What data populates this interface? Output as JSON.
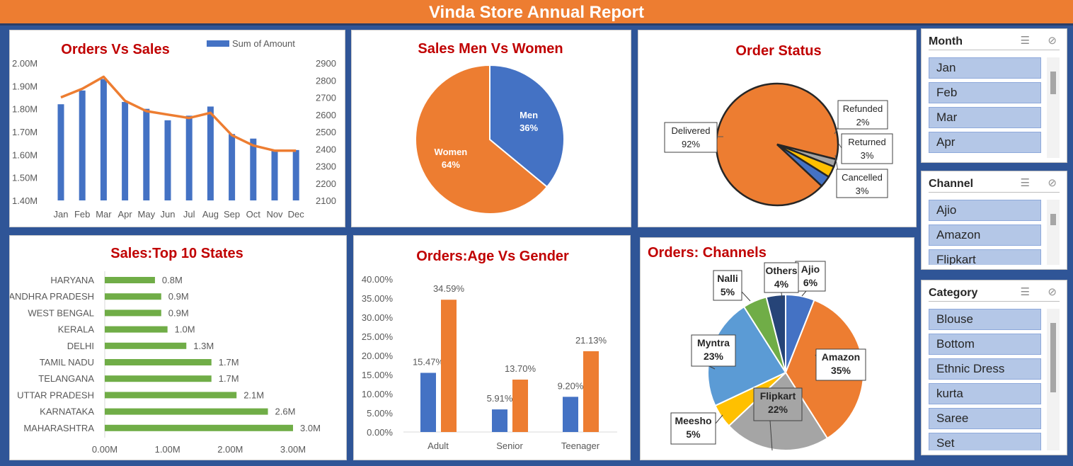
{
  "banner": {
    "title": "Vinda Store Annual Report"
  },
  "colors": {
    "blue": "#4472c4",
    "orange": "#ed7d31",
    "gray": "#a5a5a5",
    "yellow": "#ffc000",
    "lightblue": "#5b9bd5",
    "green": "#70ad47",
    "navy": "#264478",
    "title_red": "#c00000",
    "frame": "#2f5597"
  },
  "charts": [
    {
      "id": "orders_vs_sales",
      "type": "bar",
      "title": "Orders Vs Sales",
      "legend": [
        "Sum of Amount"
      ],
      "categories": [
        "Jan",
        "Feb",
        "Mar",
        "Apr",
        "May",
        "Jun",
        "Jul",
        "Aug",
        "Sep",
        "Oct",
        "Nov",
        "Dec"
      ],
      "series": [
        {
          "name": "Sum of Amount",
          "type": "bar",
          "axis": "left",
          "values": [
            1.82,
            1.88,
            1.93,
            1.83,
            1.8,
            1.75,
            1.77,
            1.81,
            1.69,
            1.67,
            1.62,
            1.62
          ]
        },
        {
          "type": "line",
          "axis": "right",
          "values": [
            2700,
            2750,
            2820,
            2680,
            2620,
            2600,
            2580,
            2610,
            2480,
            2420,
            2390,
            2390
          ]
        }
      ],
      "left_ticks": [
        "1.40M",
        "1.50M",
        "1.60M",
        "1.70M",
        "1.80M",
        "1.90M",
        "2.00M"
      ],
      "right_ticks": [
        "2100",
        "2200",
        "2300",
        "2400",
        "2500",
        "2600",
        "2700",
        "2800",
        "2900"
      ],
      "ylim": [
        1.4,
        2.0
      ],
      "y2lim": [
        2100,
        2900
      ]
    },
    {
      "id": "sales_gender",
      "type": "pie",
      "title": "Sales Men Vs Women",
      "slices": [
        {
          "label": "Men",
          "value": 36,
          "pct": "36%",
          "color": "#4472c4"
        },
        {
          "label": "Women",
          "value": 64,
          "pct": "64%",
          "color": "#ed7d31"
        }
      ]
    },
    {
      "id": "order_status",
      "type": "pie",
      "title": "Order Status",
      "slices": [
        {
          "label": "Delivered",
          "value": 92,
          "pct": "92%",
          "color": "#ed7d31"
        },
        {
          "label": "Refunded",
          "value": 2,
          "pct": "2%",
          "color": "#a5a5a5"
        },
        {
          "label": "Returned",
          "value": 3,
          "pct": "3%",
          "color": "#ffc000"
        },
        {
          "label": "Cancelled",
          "value": 3,
          "pct": "3%",
          "color": "#4472c4"
        }
      ]
    },
    {
      "id": "top_states",
      "type": "bar",
      "orientation": "horizontal",
      "title": "Sales:Top 10 States",
      "categories": [
        "HARYANA",
        "ANDHRA PRADESH",
        "WEST BENGAL",
        "KERALA",
        "DELHI",
        "TAMIL NADU",
        "TELANGANA",
        "UTTAR PRADESH",
        "KARNATAKA",
        "MAHARASHTRA"
      ],
      "values": [
        0.8,
        0.9,
        0.9,
        1.0,
        1.3,
        1.7,
        1.7,
        2.1,
        2.6,
        3.0
      ],
      "value_labels": [
        "0.8M",
        "0.9M",
        "0.9M",
        "1.0M",
        "1.3M",
        "1.7M",
        "1.7M",
        "2.1M",
        "2.6M",
        "3.0M"
      ],
      "x_ticks": [
        "0.00M",
        "1.00M",
        "2.00M",
        "3.00M"
      ],
      "xlim": [
        0,
        3.0
      ]
    },
    {
      "id": "age_gender",
      "type": "bar",
      "title": "Orders:Age Vs Gender",
      "categories": [
        "Adult",
        "Senior",
        "Teenager"
      ],
      "series": [
        {
          "values": [
            15.47,
            5.91,
            9.2
          ],
          "labels": [
            "15.47%",
            "5.91%",
            "9.20%"
          ],
          "color": "#4472c4"
        },
        {
          "values": [
            34.59,
            13.7,
            21.13
          ],
          "labels": [
            "34.59%",
            "13.70%",
            "21.13%"
          ],
          "color": "#ed7d31"
        }
      ],
      "y_ticks": [
        "0.00%",
        "5.00%",
        "10.00%",
        "15.00%",
        "20.00%",
        "25.00%",
        "30.00%",
        "35.00%",
        "40.00%"
      ],
      "ylim": [
        0,
        40
      ]
    },
    {
      "id": "channels",
      "type": "pie",
      "title": "Orders: Channels",
      "slices": [
        {
          "label": "Ajio",
          "value": 6,
          "pct": "6%",
          "color": "#4472c4"
        },
        {
          "label": "Amazon",
          "value": 35,
          "pct": "35%",
          "color": "#ed7d31"
        },
        {
          "label": "Flipkart",
          "value": 22,
          "pct": "22%",
          "color": "#a5a5a5"
        },
        {
          "label": "Meesho",
          "value": 5,
          "pct": "5%",
          "color": "#ffc000"
        },
        {
          "label": "Myntra",
          "value": 23,
          "pct": "23%",
          "color": "#5b9bd5"
        },
        {
          "label": "Nalli",
          "value": 5,
          "pct": "5%",
          "color": "#70ad47"
        },
        {
          "label": "Others",
          "value": 4,
          "pct": "4%",
          "color": "#264478"
        }
      ]
    }
  ],
  "slicers": {
    "month": {
      "title": "Month",
      "items": [
        "Jan",
        "Feb",
        "Mar",
        "Apr"
      ],
      "multi_select_icon": "multi-select-icon",
      "clear_icon": "clear-filter-icon"
    },
    "channel": {
      "title": "Channel",
      "items": [
        "Ajio",
        "Amazon",
        "Flipkart"
      ],
      "multi_select_icon": "multi-select-icon",
      "clear_icon": "clear-filter-icon"
    },
    "category": {
      "title": "Category",
      "items": [
        "Blouse",
        "Bottom",
        "Ethnic Dress",
        "kurta",
        "Saree",
        "Set"
      ],
      "multi_select_icon": "multi-select-icon",
      "clear_icon": "clear-filter-icon"
    }
  }
}
